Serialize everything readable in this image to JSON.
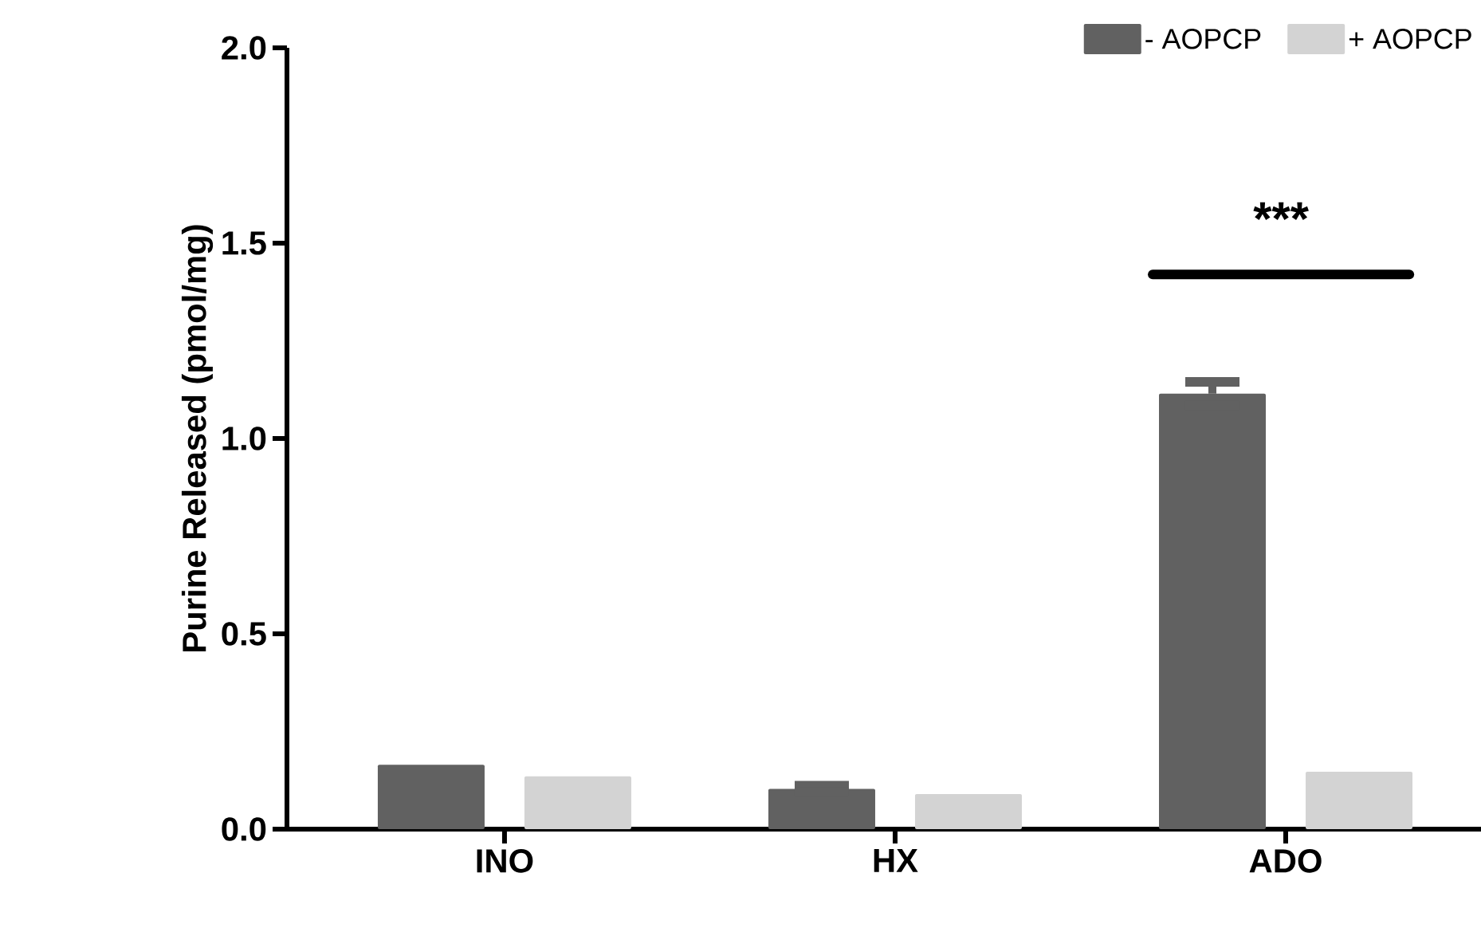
{
  "chart_data": {
    "type": "bar",
    "ylabel": "Purine Released (pmol/mg)",
    "categories": [
      "INO",
      "HX",
      "ADO"
    ],
    "series": [
      {
        "name": "- AOPCP",
        "color": "#616161",
        "values": [
          0.165,
          0.103,
          1.115
        ],
        "errors": [
          null,
          0.008,
          0.03
        ]
      },
      {
        "name": "+ AOPCP",
        "color": "#d3d3d3",
        "values": [
          0.135,
          0.09,
          0.147
        ]
      }
    ],
    "ylim": [
      0,
      2
    ],
    "yticks": [
      {
        "value": 0,
        "label": "0.0"
      },
      {
        "value": 0.5,
        "label": "0.5"
      },
      {
        "value": 1,
        "label": "1.0"
      },
      {
        "value": 1.5,
        "label": "1.5"
      },
      {
        "value": 2,
        "label": "2.0"
      }
    ],
    "legend": "top right",
    "annotations": [
      "***"
    ]
  }
}
